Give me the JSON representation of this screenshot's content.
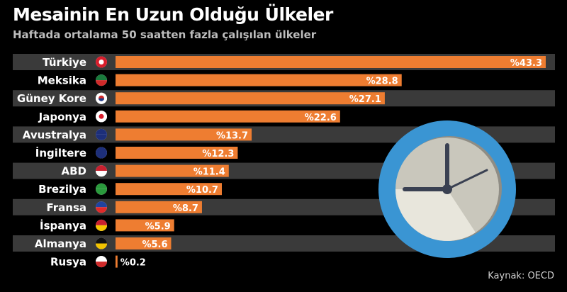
{
  "title": "Mesainin En Uzun Olduğu Ülkeler",
  "subtitle": "Haftada ortalama 50 saatten fazla çalışılan ülkeler",
  "source": "Kaynak: OECD",
  "colors": {
    "bar": "#ee7d31",
    "band": "#3a3a3a",
    "clock_ring": "#3a95d3",
    "clock_face": "#c9c7bc",
    "clock_face_light": "#e8e6dc",
    "hands": "#3a4152"
  },
  "chart_data": {
    "type": "bar",
    "orientation": "horizontal",
    "title": "Mesainin En Uzun Olduğu Ülkeler",
    "xlabel": "",
    "ylabel": "",
    "xlim": [
      0,
      43.3
    ],
    "categories": [
      "Türkiye",
      "Meksika",
      "Güney Kore",
      "Japonya",
      "Avustralya",
      "İngiltere",
      "ABD",
      "Brezilya",
      "Fransa",
      "İspanya",
      "Almanya",
      "Rusya"
    ],
    "values": [
      43.3,
      28.8,
      27.1,
      22.6,
      13.7,
      12.3,
      11.4,
      10.7,
      8.7,
      5.9,
      5.6,
      0.2
    ],
    "labels": [
      "%43.3",
      "%28.8",
      "%27.1",
      "%22.6",
      "%13.7",
      "%12.3",
      "%11.4",
      "%10.7",
      "%8.7",
      "%5.9",
      "%5.6",
      "%0.2"
    ],
    "flag_icons": [
      "turkey-flag",
      "mexico-flag",
      "south-korea-flag",
      "japan-flag",
      "australia-flag",
      "uk-flag",
      "usa-flag",
      "brazil-flag",
      "france-flag",
      "spain-flag",
      "germany-flag",
      "russia-flag"
    ]
  }
}
